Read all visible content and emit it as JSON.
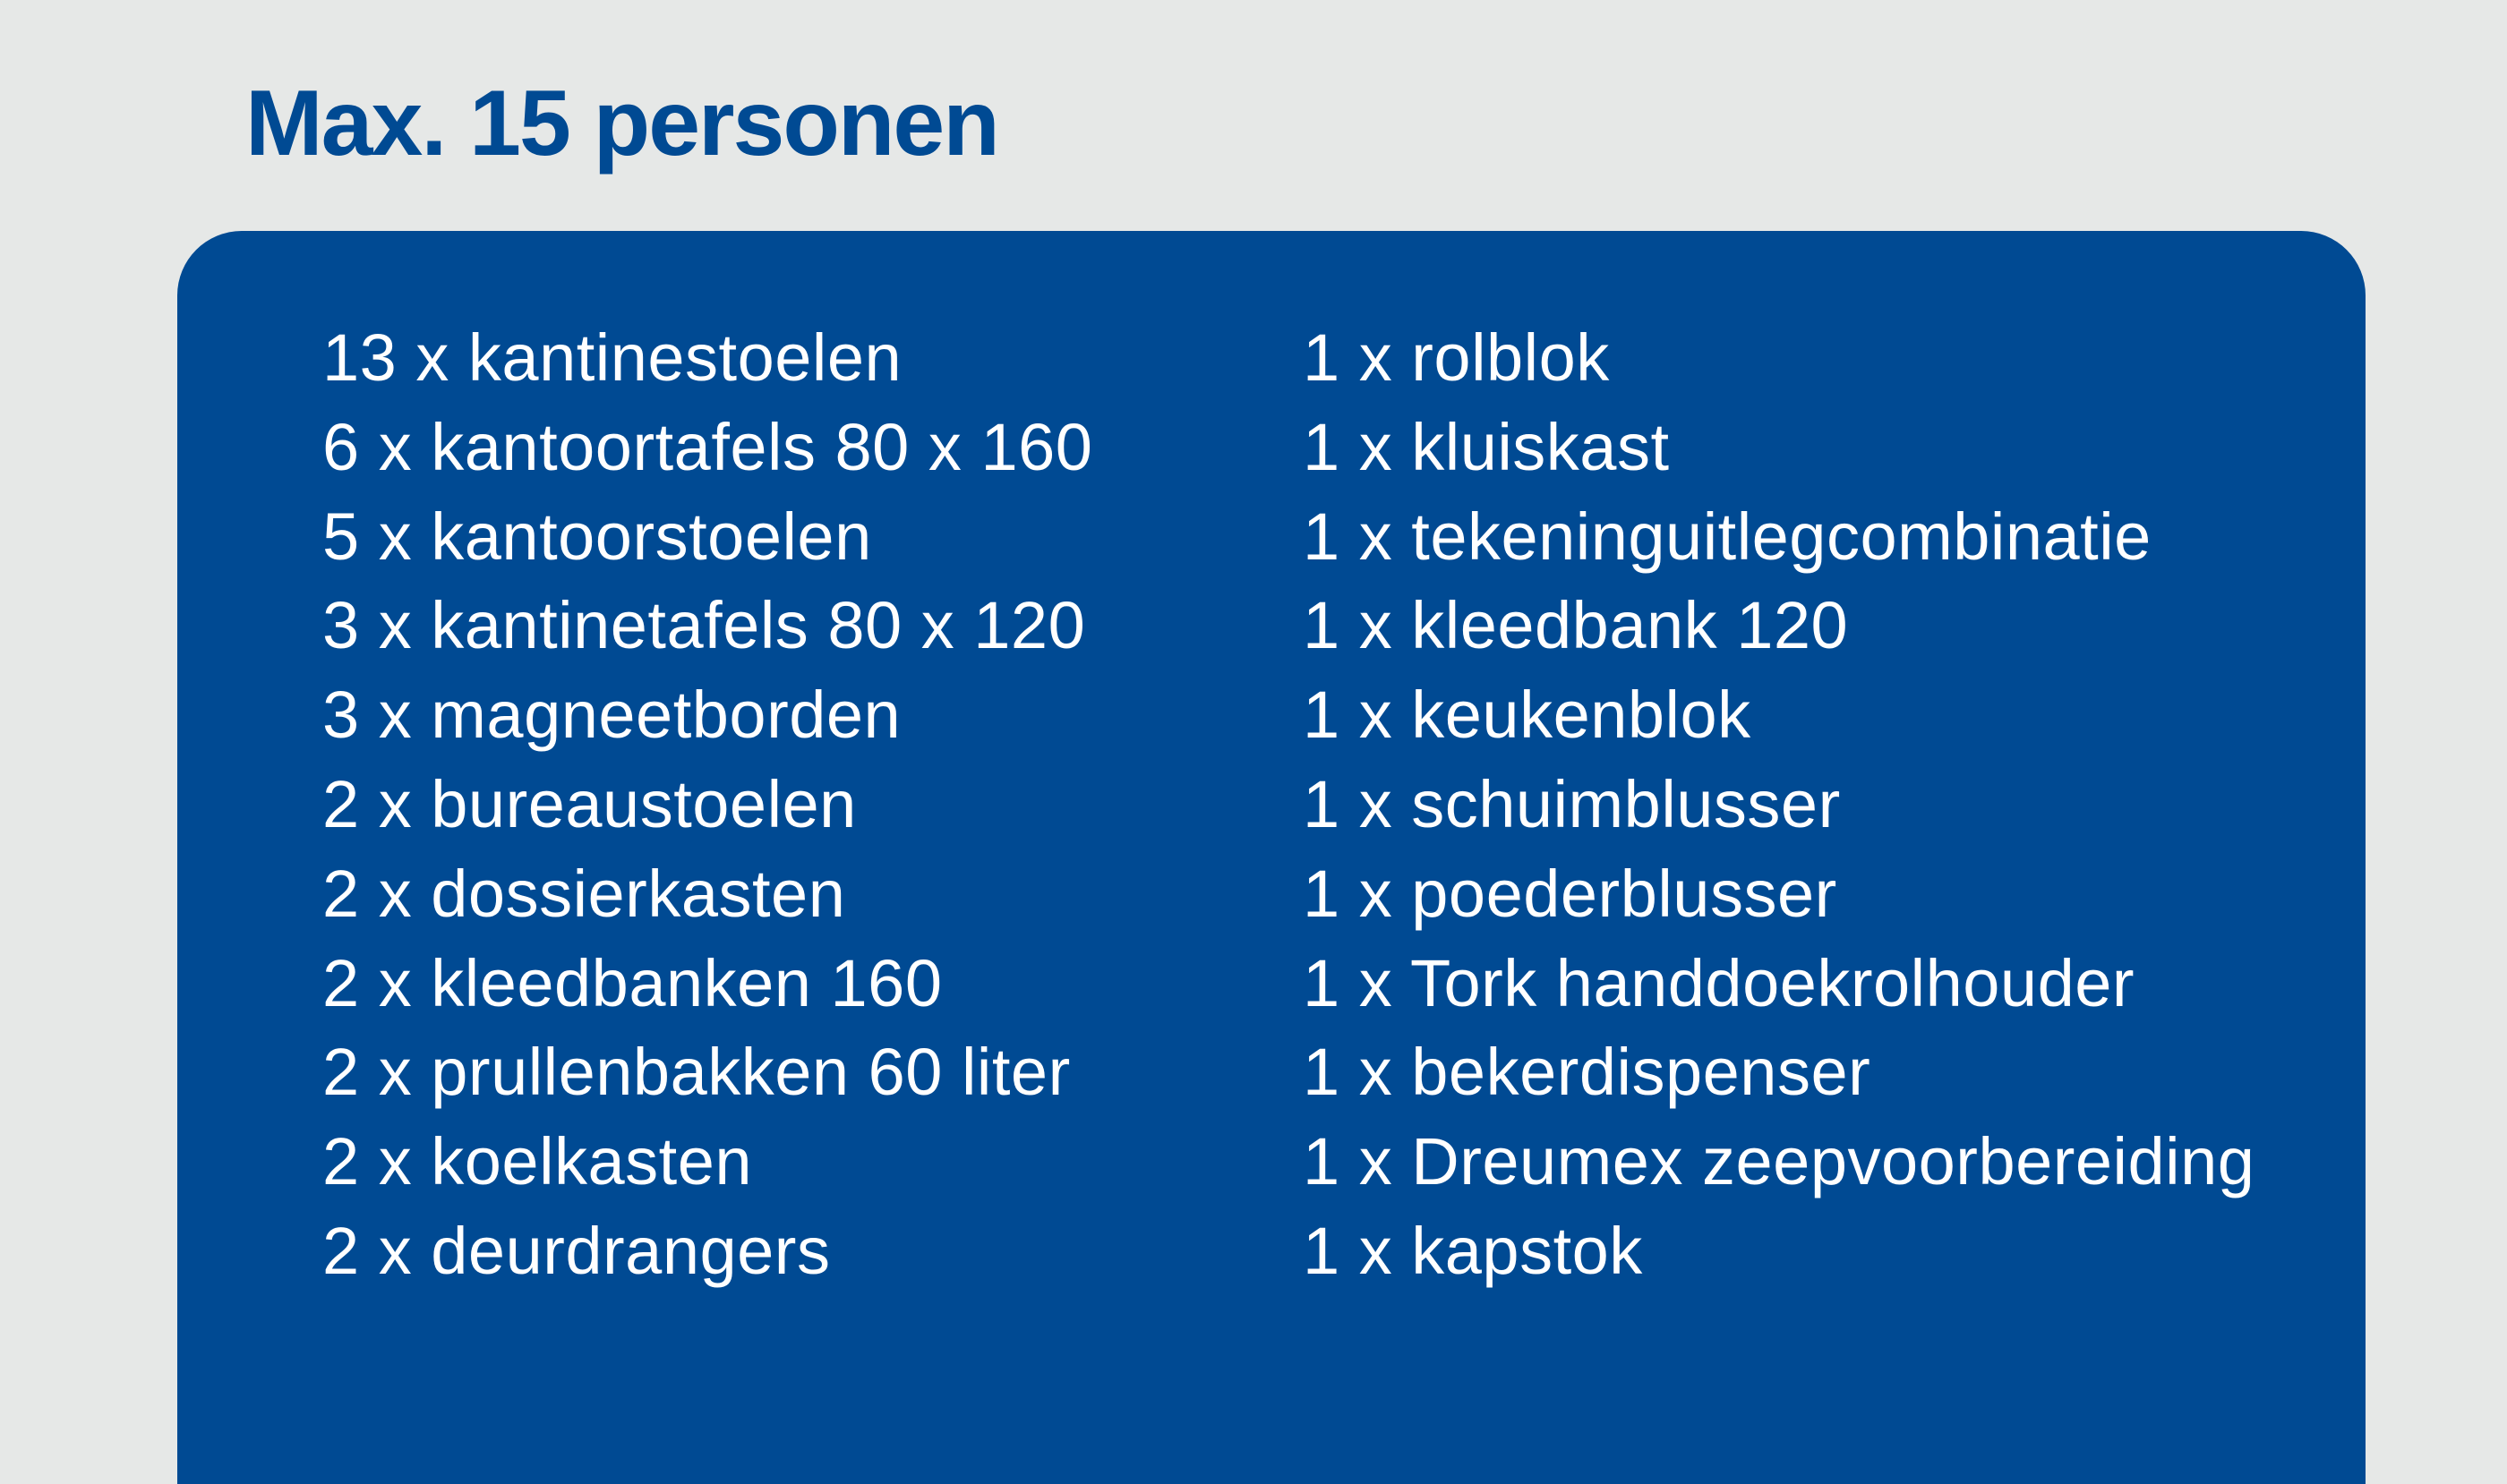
{
  "title": "Max. 15 personen",
  "colors": {
    "background": "#e6e8e7",
    "accent": "#004a93",
    "text_on_panel": "#ffffff"
  },
  "left_items": [
    "13 x kantinestoelen",
    "6 x kantoortafels 80 x 160",
    "5 x kantoorstoelen",
    "3 x kantinetafels 80 x 120",
    "3 x magneetborden",
    "2 x bureaustoelen",
    "2 x dossierkasten",
    "2 x kleedbanken 160",
    "2 x prullenbakken 60 liter",
    "2 x koelkasten",
    "2 x deurdrangers"
  ],
  "right_items": [
    "1 x rolblok",
    "1 x kluiskast",
    "1 x tekeninguitlegcombinatie",
    "1 x kleedbank 120",
    "1 x keukenblok",
    "1 x schuimblusser",
    "1 x poederblusser",
    "1 x Tork handdoekrolhouder",
    "1 x bekerdispenser",
    "1 x Dreumex zeepvoorbereiding",
    "1 x kapstok"
  ]
}
